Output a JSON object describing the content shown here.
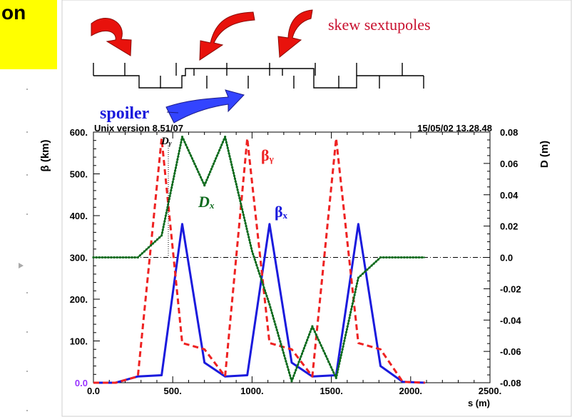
{
  "slide": {
    "title_fragment": "on",
    "labels": {
      "skew_sextupoles": "skew sextupoles",
      "spoiler": "spoiler"
    },
    "colors": {
      "title_box": "#ffff00",
      "arrow_red": "#e8120c",
      "arrow_blue": "#3344ff",
      "spoiler_text": "#1a1adc",
      "skew_text": "#c8102e"
    }
  },
  "chart_data": {
    "type": "line",
    "header_left": "Unix version 8.51/07",
    "header_right": "15/05/02  13.28.48",
    "xlabel": "s (m)",
    "ylabel": "β (km)",
    "y2label": "D (m)",
    "xlim": [
      0,
      2500
    ],
    "ylim": [
      0,
      600
    ],
    "y2lim": [
      -0.08,
      0.08
    ],
    "x_ticks": [
      "0.0",
      "500.",
      "1000.",
      "1500.",
      "2000.",
      "2500."
    ],
    "y_ticks": [
      "0.0",
      "100.",
      "200.",
      "300.",
      "400.",
      "500.",
      "600."
    ],
    "y2_ticks": [
      "-0.08",
      "-0.06",
      "-0.04",
      "-0.02",
      "0.0",
      "0.02",
      "0.04",
      "0.06",
      "0.08"
    ],
    "annotations": {
      "dy": "Dᵧ",
      "dx": "Dₓ",
      "by": "βᵧ",
      "bx": "βₓ"
    },
    "series": [
      {
        "name": "βₓ",
        "color": "#1a1add",
        "axis": "left",
        "points": [
          [
            0,
            0
          ],
          [
            140,
            0
          ],
          [
            280,
            15
          ],
          [
            430,
            18
          ],
          [
            560,
            380
          ],
          [
            700,
            48
          ],
          [
            830,
            15
          ],
          [
            970,
            18
          ],
          [
            1110,
            380
          ],
          [
            1250,
            48
          ],
          [
            1380,
            15
          ],
          [
            1530,
            18
          ],
          [
            1670,
            380
          ],
          [
            1810,
            40
          ],
          [
            1950,
            2
          ],
          [
            2090,
            0
          ]
        ]
      },
      {
        "name": "βᵧ",
        "color": "#ee2222",
        "axis": "left",
        "points": [
          [
            0,
            0
          ],
          [
            140,
            0
          ],
          [
            280,
            15
          ],
          [
            430,
            585
          ],
          [
            560,
            95
          ],
          [
            700,
            80
          ],
          [
            830,
            15
          ],
          [
            970,
            585
          ],
          [
            1110,
            95
          ],
          [
            1250,
            80
          ],
          [
            1380,
            15
          ],
          [
            1530,
            585
          ],
          [
            1670,
            95
          ],
          [
            1810,
            80
          ],
          [
            1950,
            2
          ],
          [
            2090,
            0
          ]
        ]
      },
      {
        "name": "Dₓ",
        "color": "#0f6b1e",
        "axis": "right",
        "points": [
          [
            0,
            0
          ],
          [
            280,
            0
          ],
          [
            430,
            0.014
          ],
          [
            560,
            0.077
          ],
          [
            700,
            0.046
          ],
          [
            830,
            0.077
          ],
          [
            1000,
            0.004
          ],
          [
            1110,
            -0.03
          ],
          [
            1250,
            -0.079
          ],
          [
            1380,
            -0.044
          ],
          [
            1530,
            -0.077
          ],
          [
            1670,
            -0.013
          ],
          [
            1810,
            0
          ],
          [
            2090,
            0
          ]
        ]
      }
    ]
  }
}
